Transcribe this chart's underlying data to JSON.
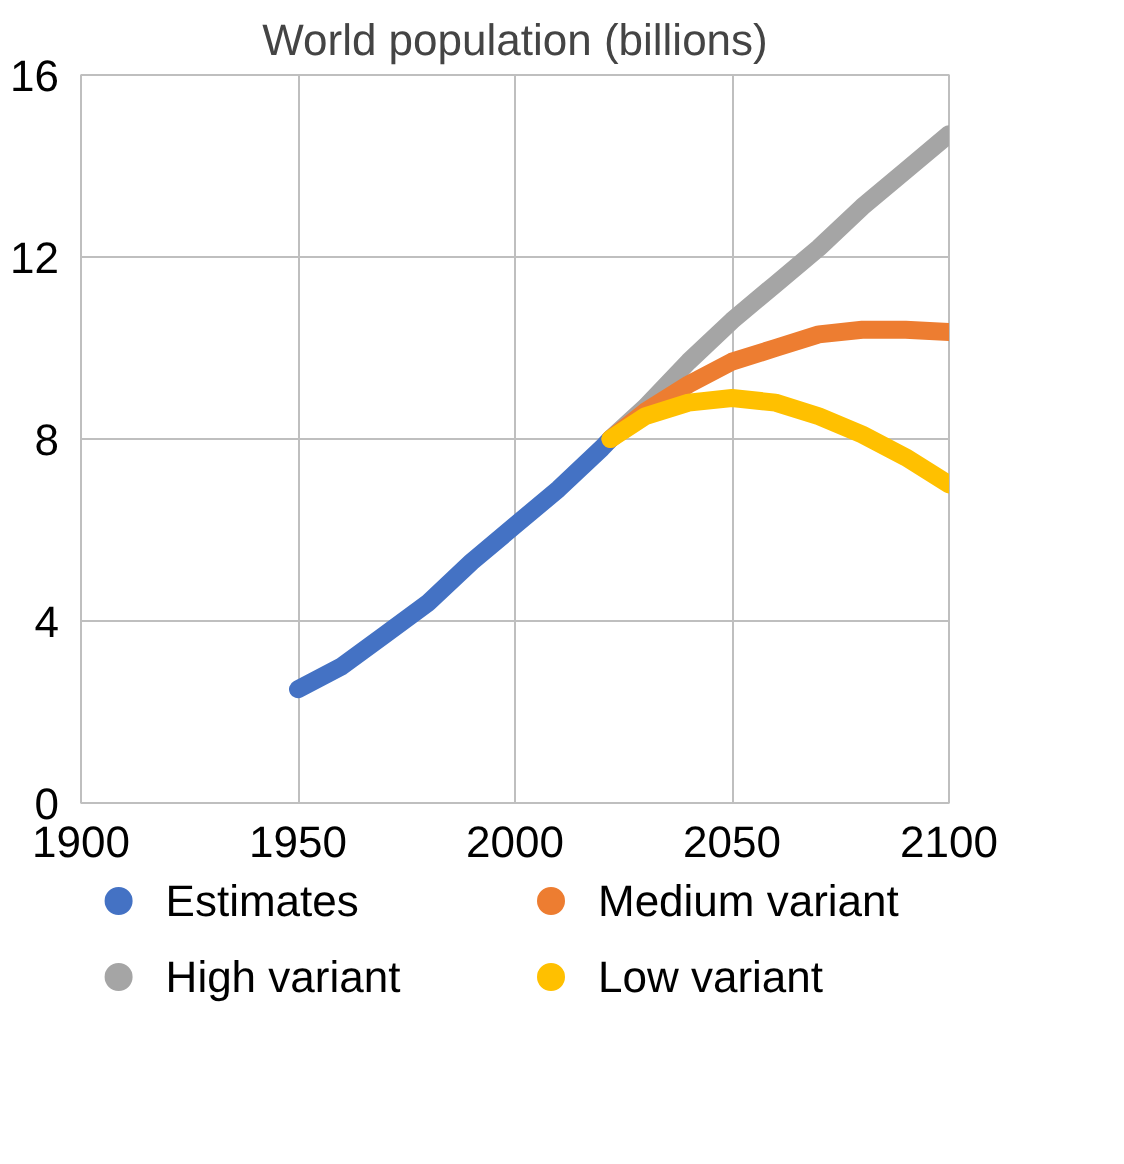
{
  "chart_data": {
    "type": "line",
    "title": "World population (billions)",
    "series": [
      {
        "name": "Estimates",
        "color": "#4472c4",
        "x": [
          1950,
          1960,
          1970,
          1980,
          1990,
          2000,
          2010,
          2020,
          2022
        ],
        "values": [
          2.5,
          3.0,
          3.7,
          4.4,
          5.3,
          6.1,
          6.9,
          7.8,
          8.0
        ]
      },
      {
        "name": "High variant",
        "color": "#a5a5a5",
        "x": [
          2022,
          2030,
          2040,
          2050,
          2060,
          2070,
          2080,
          2090,
          2100
        ],
        "values": [
          8.0,
          8.7,
          9.7,
          10.6,
          11.4,
          12.2,
          13.1,
          13.9,
          14.7
        ]
      },
      {
        "name": "Medium variant",
        "color": "#ed7d31",
        "x": [
          2022,
          2030,
          2040,
          2050,
          2060,
          2070,
          2080,
          2090,
          2100
        ],
        "values": [
          8.0,
          8.6,
          9.2,
          9.7,
          10.0,
          10.3,
          10.4,
          10.4,
          10.35
        ]
      },
      {
        "name": "Low variant",
        "color": "#ffc000",
        "x": [
          2022,
          2030,
          2040,
          2050,
          2060,
          2070,
          2080,
          2090,
          2100
        ],
        "values": [
          8.0,
          8.5,
          8.8,
          8.9,
          8.8,
          8.5,
          8.1,
          7.6,
          7.0
        ]
      }
    ],
    "xlim": [
      1900,
      2100
    ],
    "xticks": [
      1900,
      1950,
      2000,
      2050,
      2100
    ],
    "ylim": [
      0,
      16
    ],
    "yticks": [
      0,
      4,
      8,
      12,
      16
    ],
    "grid": true,
    "legend": "bottom",
    "marker": "none",
    "line_style": "solid"
  }
}
